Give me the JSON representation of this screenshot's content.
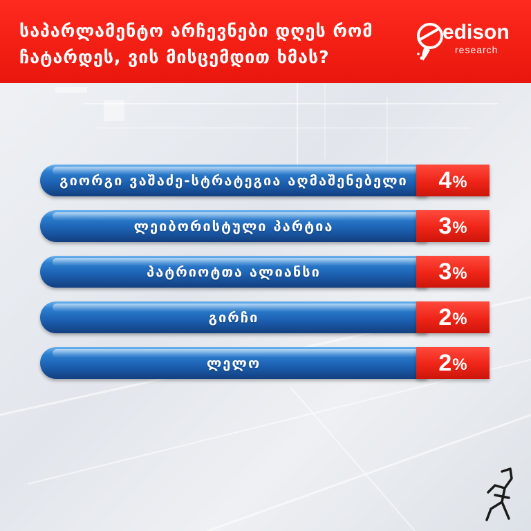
{
  "header": {
    "title": "საპარლამენტო არჩევნები დღეს რომ ჩატარდეს, ვის მისცემდით ხმას?",
    "background_color": "#e8160c"
  },
  "logo": {
    "word": "edison",
    "sub": "research",
    "icon": "edison-rocket-logo-icon"
  },
  "chart_data": {
    "type": "bar",
    "orientation": "horizontal",
    "categories": [
      "გიორგი ვაშაძე-სტრატეგია აღმაშენებელი",
      "ლეიბორისტული პარტია",
      "პატრიოტთა ალიანსი",
      "გირჩი",
      "ლელო"
    ],
    "values": [
      4,
      3,
      3,
      2,
      2
    ],
    "value_labels": [
      "4",
      "3",
      "3",
      "2",
      "2"
    ],
    "unit": "%",
    "bar_color": "#1c5fb0",
    "value_box_color": "#ee2417"
  },
  "footer": {
    "mascot_icon": "running-figure-logo-icon"
  }
}
